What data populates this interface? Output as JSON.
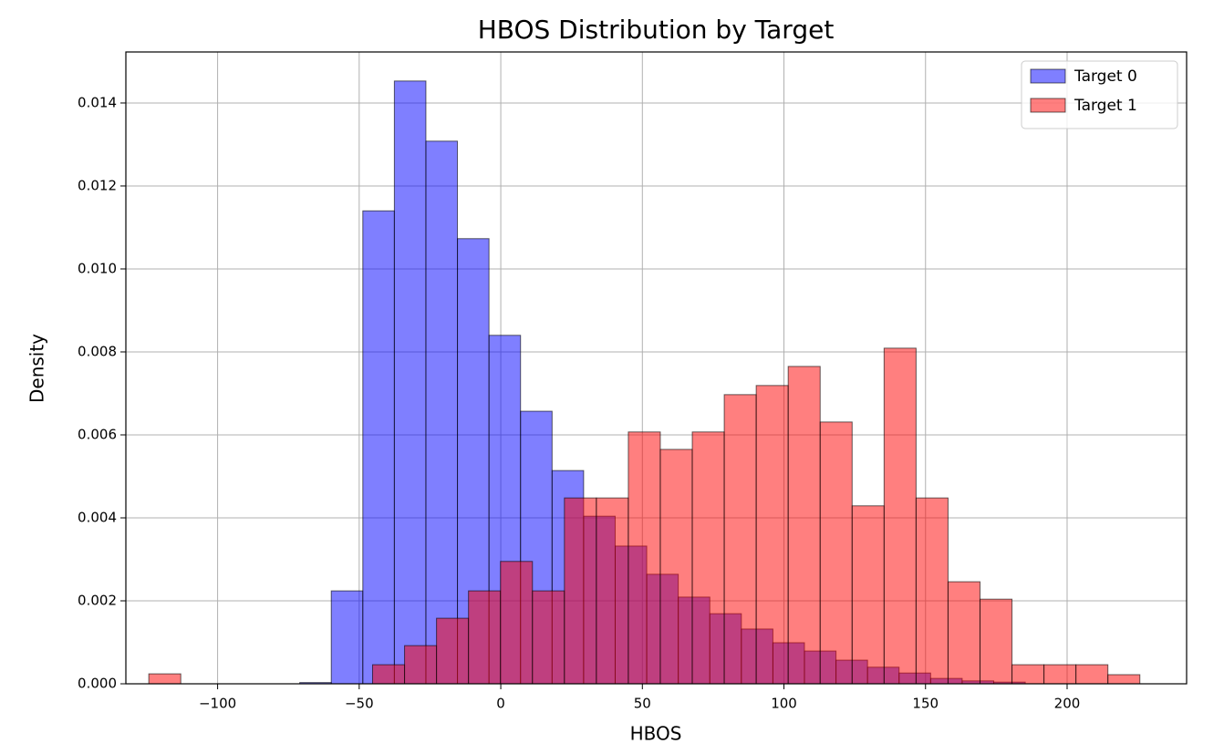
{
  "chart_data": {
    "type": "histogram",
    "title": "HBOS Distribution by Target",
    "xlabel": "HBOS",
    "ylabel": "Density",
    "xlim": [
      -132.4,
      242.2
    ],
    "ylim": [
      0,
      0.01523
    ],
    "xticks": [
      {
        "value": -100,
        "label": "−100"
      },
      {
        "value": -50,
        "label": "−50"
      },
      0,
      50,
      100,
      150,
      200
    ],
    "yticks": [
      {
        "value": 0,
        "label": "0.000"
      },
      {
        "value": 0.002,
        "label": "0.002"
      },
      {
        "value": 0.004,
        "label": "0.004"
      },
      {
        "value": 0.006,
        "label": "0.006"
      },
      {
        "value": 0.008,
        "label": "0.008"
      },
      {
        "value": 0.01,
        "label": "0.010"
      },
      {
        "value": 0.012,
        "label": "0.012"
      },
      {
        "value": 0.014,
        "label": "0.014"
      }
    ],
    "grid": true,
    "legend": "upper right",
    "alpha": 0.5,
    "series": [
      {
        "name": "Target 0",
        "color": "#0000ff",
        "bins": [
          -71.0,
          -59.86,
          -48.72,
          -37.58,
          -26.44,
          -15.3,
          -4.16,
          6.98,
          18.12,
          29.26,
          40.4,
          51.54,
          62.68,
          73.82,
          84.96,
          96.1,
          107.24,
          118.38,
          129.52,
          140.66,
          151.8,
          162.94,
          174.08,
          185.22
        ],
        "values": [
          3e-05,
          0.00224,
          0.0114,
          0.01453,
          0.01308,
          0.01073,
          0.0084,
          0.00657,
          0.00514,
          0.00404,
          0.00332,
          0.00264,
          0.00209,
          0.00169,
          0.00132,
          0.00099,
          0.00079,
          0.00057,
          0.0004,
          0.00026,
          0.00013,
          7e-05,
          4e-05
        ]
      },
      {
        "name": "Target 1",
        "color": "#ff0000",
        "bins": [
          -124.3,
          -113.01,
          -101.72,
          -90.43,
          -79.14,
          -67.85,
          -56.56,
          -45.27,
          -33.98,
          -22.69,
          -11.4,
          -0.11,
          11.18,
          22.47,
          33.76,
          45.05,
          56.34,
          67.63,
          78.92,
          90.21,
          101.5,
          112.79,
          124.08,
          135.37,
          146.66,
          157.95,
          169.24,
          180.53,
          191.82,
          203.11,
          214.4,
          225.69
        ],
        "values": [
          0.00024,
          0,
          0,
          0,
          0,
          0,
          0,
          0.00046,
          0.00092,
          0.00158,
          0.00224,
          0.00295,
          0.00224,
          0.00448,
          0.00448,
          0.00607,
          0.00565,
          0.00607,
          0.00697,
          0.00719,
          0.00765,
          0.00631,
          0.00429,
          0.00809,
          0.00448,
          0.00246,
          0.00204,
          0.00046,
          0.00046,
          0.00046,
          0.00022
        ]
      }
    ]
  }
}
